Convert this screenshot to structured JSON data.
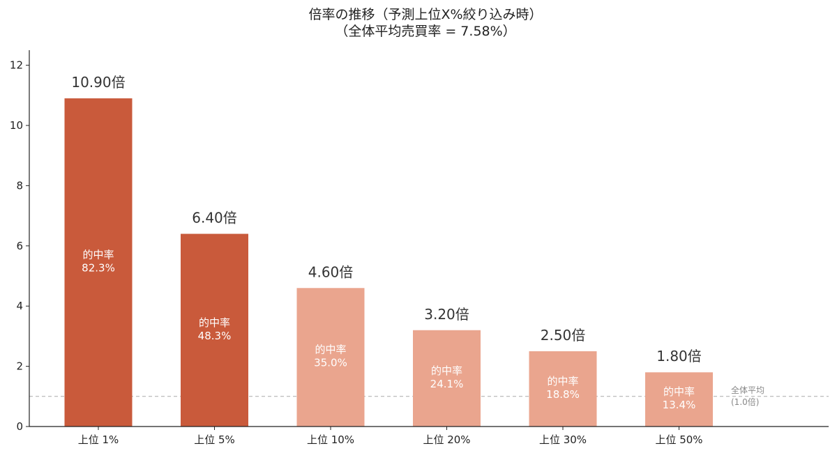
{
  "chart_data": {
    "type": "bar",
    "title": "倍率の推移（予測上位X%絞り込み時）",
    "subtitle": "（全体平均売買率 = 7.58%）",
    "categories": [
      "上位 1%",
      "上位 5%",
      "上位 10%",
      "上位 20%",
      "上位 30%",
      "上位 50%"
    ],
    "values": [
      10.9,
      6.4,
      4.6,
      3.2,
      2.5,
      1.8
    ],
    "value_labels": [
      "10.90倍",
      "6.40倍",
      "4.60倍",
      "3.20倍",
      "2.50倍",
      "1.80倍"
    ],
    "inner_label_title": "的中率",
    "inner_labels": [
      "82.3%",
      "48.3%",
      "35.0%",
      "24.1%",
      "18.8%",
      "13.4%"
    ],
    "bar_colors": [
      "#c95a3b",
      "#c95a3b",
      "#eaa58e",
      "#eaa58e",
      "#eaa58e",
      "#eaa58e"
    ],
    "xlabel": "",
    "ylabel": "",
    "ylim": [
      0,
      12.5
    ],
    "yticks": [
      0,
      2,
      4,
      6,
      8,
      10,
      12
    ],
    "grid": false,
    "reference_line": {
      "value": 1.0,
      "label_line1": "全体平均",
      "label_line2": "(1.0倍)",
      "color": "#aaaaaa"
    },
    "axis_color": "#222222"
  }
}
